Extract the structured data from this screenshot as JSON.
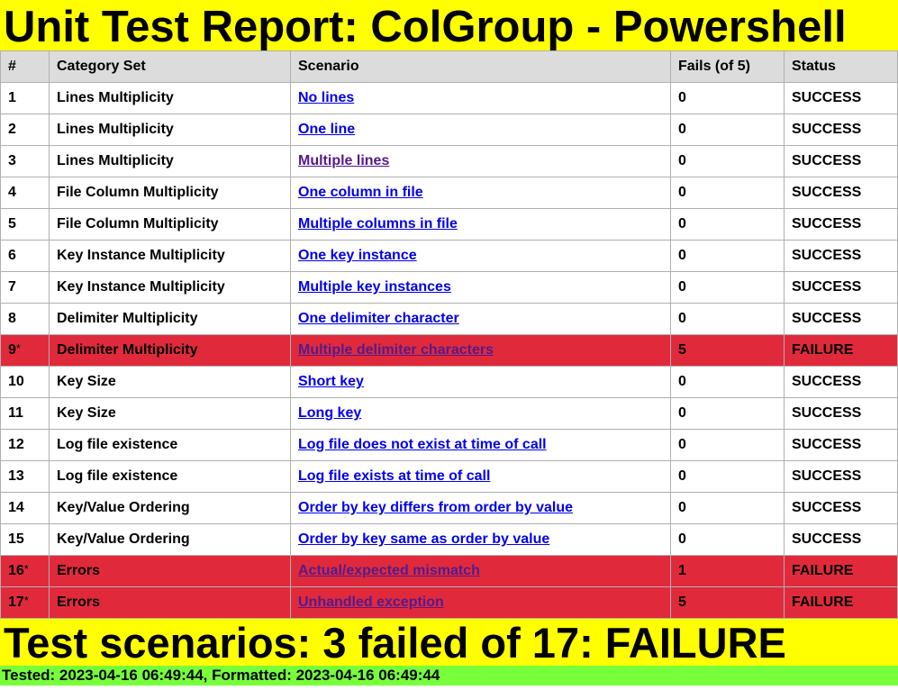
{
  "title": "Unit Test Report: ColGroup - Powershell",
  "columns": [
    "#",
    "Category Set",
    "Scenario",
    "Fails (of 5)",
    "Status"
  ],
  "rows": [
    {
      "num": "1",
      "mark": "",
      "category": "Lines Multiplicity",
      "scenario": "No lines",
      "fails": "0",
      "status": "SUCCESS",
      "failed": false,
      "visited": false
    },
    {
      "num": "2",
      "mark": "",
      "category": "Lines Multiplicity",
      "scenario": "One line",
      "fails": "0",
      "status": "SUCCESS",
      "failed": false,
      "visited": false
    },
    {
      "num": "3",
      "mark": "",
      "category": "Lines Multiplicity",
      "scenario": "Multiple lines",
      "fails": "0",
      "status": "SUCCESS",
      "failed": false,
      "visited": true
    },
    {
      "num": "4",
      "mark": "",
      "category": "File Column Multiplicity",
      "scenario": "One column in file",
      "fails": "0",
      "status": "SUCCESS",
      "failed": false,
      "visited": false
    },
    {
      "num": "5",
      "mark": "",
      "category": "File Column Multiplicity",
      "scenario": "Multiple columns in file",
      "fails": "0",
      "status": "SUCCESS",
      "failed": false,
      "visited": false
    },
    {
      "num": "6",
      "mark": "",
      "category": "Key Instance Multiplicity",
      "scenario": "One key instance",
      "fails": "0",
      "status": "SUCCESS",
      "failed": false,
      "visited": false
    },
    {
      "num": "7",
      "mark": "",
      "category": "Key Instance Multiplicity",
      "scenario": "Multiple key instances",
      "fails": "0",
      "status": "SUCCESS",
      "failed": false,
      "visited": false
    },
    {
      "num": "8",
      "mark": "",
      "category": "Delimiter Multiplicity",
      "scenario": "One delimiter character",
      "fails": "0",
      "status": "SUCCESS",
      "failed": false,
      "visited": false
    },
    {
      "num": "9",
      "mark": "*",
      "category": "Delimiter Multiplicity",
      "scenario": "Multiple delimiter characters",
      "fails": "5",
      "status": "FAILURE",
      "failed": true,
      "visited": true
    },
    {
      "num": "10",
      "mark": "",
      "category": "Key Size",
      "scenario": "Short key",
      "fails": "0",
      "status": "SUCCESS",
      "failed": false,
      "visited": false
    },
    {
      "num": "11",
      "mark": "",
      "category": "Key Size",
      "scenario": "Long key",
      "fails": "0",
      "status": "SUCCESS",
      "failed": false,
      "visited": false
    },
    {
      "num": "12",
      "mark": "",
      "category": "Log file existence",
      "scenario": "Log file does not exist at time of call",
      "fails": "0",
      "status": "SUCCESS",
      "failed": false,
      "visited": false
    },
    {
      "num": "13",
      "mark": "",
      "category": "Log file existence",
      "scenario": "Log file exists at time of call",
      "fails": "0",
      "status": "SUCCESS",
      "failed": false,
      "visited": false
    },
    {
      "num": "14",
      "mark": "",
      "category": "Key/Value Ordering",
      "scenario": "Order by key differs from order by value",
      "fails": "0",
      "status": "SUCCESS",
      "failed": false,
      "visited": false
    },
    {
      "num": "15",
      "mark": "",
      "category": "Key/Value Ordering",
      "scenario": "Order by key same as order by value",
      "fails": "0",
      "status": "SUCCESS",
      "failed": false,
      "visited": false
    },
    {
      "num": "16",
      "mark": "*",
      "category": "Errors",
      "scenario": "Actual/expected mismatch",
      "fails": "1",
      "status": "FAILURE",
      "failed": true,
      "visited": true
    },
    {
      "num": "17",
      "mark": "*",
      "category": "Errors",
      "scenario": "Unhandled exception",
      "fails": "5",
      "status": "FAILURE",
      "failed": true,
      "visited": false
    }
  ],
  "summary": "Test scenarios: 3 failed of 17: FAILURE",
  "footer": "Tested: 2023-04-16 06:49:44, Formatted: 2023-04-16 06:49:44",
  "colors": {
    "title_bg": "#ffff00",
    "header_bg": "#dcdcdc",
    "failure_row": "#e02a3c",
    "footer_bg": "#76ff3a",
    "link": "#0000ee",
    "visited_link": "#551a8b"
  }
}
